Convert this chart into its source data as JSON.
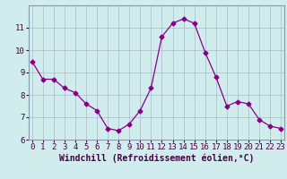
{
  "x": [
    0,
    1,
    2,
    3,
    4,
    5,
    6,
    7,
    8,
    9,
    10,
    11,
    12,
    13,
    14,
    15,
    16,
    17,
    18,
    19,
    20,
    21,
    22,
    23
  ],
  "y": [
    9.5,
    8.7,
    8.7,
    8.3,
    8.1,
    7.6,
    7.3,
    6.5,
    6.4,
    6.7,
    7.3,
    8.3,
    10.6,
    11.2,
    11.4,
    11.2,
    9.9,
    8.8,
    7.5,
    7.7,
    7.6,
    6.9,
    6.6,
    6.5
  ],
  "line_color": "#880088",
  "marker": "D",
  "marker_size": 2.5,
  "bg_color": "#d0ecec",
  "grid_color": "#aabbcc",
  "xlabel": "Windchill (Refroidissement éolien,°C)",
  "xlabel_fontsize": 7,
  "tick_fontsize": 6.5,
  "ylim": [
    6,
    12
  ],
  "yticks": [
    6,
    7,
    8,
    9,
    10,
    11
  ],
  "xticks": [
    0,
    1,
    2,
    3,
    4,
    5,
    6,
    7,
    8,
    9,
    10,
    11,
    12,
    13,
    14,
    15,
    16,
    17,
    18,
    19,
    20,
    21,
    22,
    23
  ],
  "xlim": [
    -0.3,
    23.3
  ]
}
